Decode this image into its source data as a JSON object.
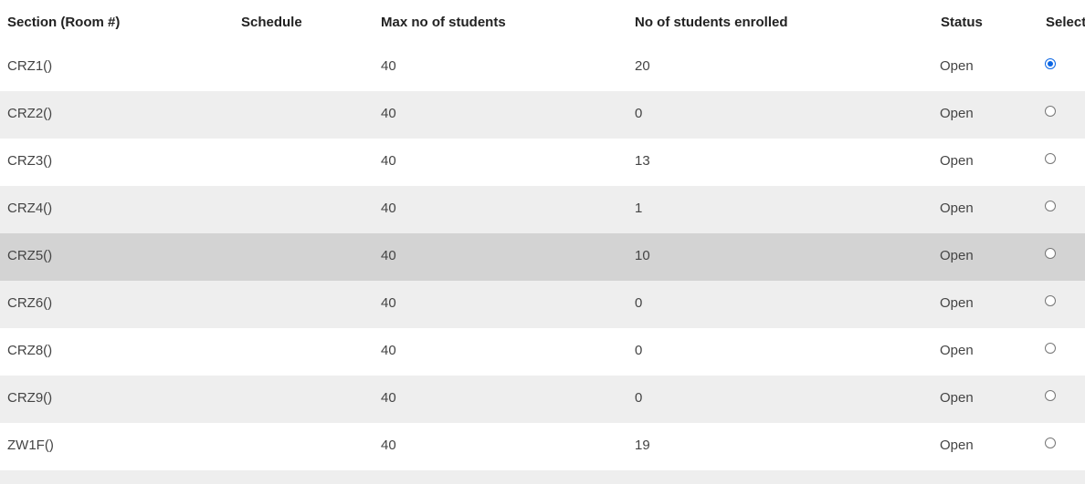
{
  "table": {
    "headers": {
      "section": "Section (Room #)",
      "schedule": "Schedule",
      "max": "Max no of students",
      "enrolled": "No of students enrolled",
      "status": "Status",
      "select": "Select"
    },
    "rows": [
      {
        "section": "CRZ1()",
        "schedule": "",
        "max": "40",
        "enrolled": "20",
        "status": "Open",
        "selected": true,
        "bg": "#ffffff"
      },
      {
        "section": "CRZ2()",
        "schedule": "",
        "max": "40",
        "enrolled": "0",
        "status": "Open",
        "selected": false,
        "bg": "#eeeeee"
      },
      {
        "section": "CRZ3()",
        "schedule": "",
        "max": "40",
        "enrolled": "13",
        "status": "Open",
        "selected": false,
        "bg": "#ffffff"
      },
      {
        "section": "CRZ4()",
        "schedule": "",
        "max": "40",
        "enrolled": "1",
        "status": "Open",
        "selected": false,
        "bg": "#eeeeee"
      },
      {
        "section": "CRZ5()",
        "schedule": "",
        "max": "40",
        "enrolled": "10",
        "status": "Open",
        "selected": false,
        "bg": "#d3d3d3"
      },
      {
        "section": "CRZ6()",
        "schedule": "",
        "max": "40",
        "enrolled": "0",
        "status": "Open",
        "selected": false,
        "bg": "#eeeeee"
      },
      {
        "section": "CRZ8()",
        "schedule": "",
        "max": "40",
        "enrolled": "0",
        "status": "Open",
        "selected": false,
        "bg": "#ffffff"
      },
      {
        "section": "CRZ9()",
        "schedule": "",
        "max": "40",
        "enrolled": "0",
        "status": "Open",
        "selected": false,
        "bg": "#eeeeee"
      },
      {
        "section": "ZW1F()",
        "schedule": "",
        "max": "40",
        "enrolled": "19",
        "status": "Open",
        "selected": false,
        "bg": "#ffffff"
      }
    ],
    "trailing_row_bg": "#eeeeee",
    "radio_accent": "#0b66e4"
  }
}
